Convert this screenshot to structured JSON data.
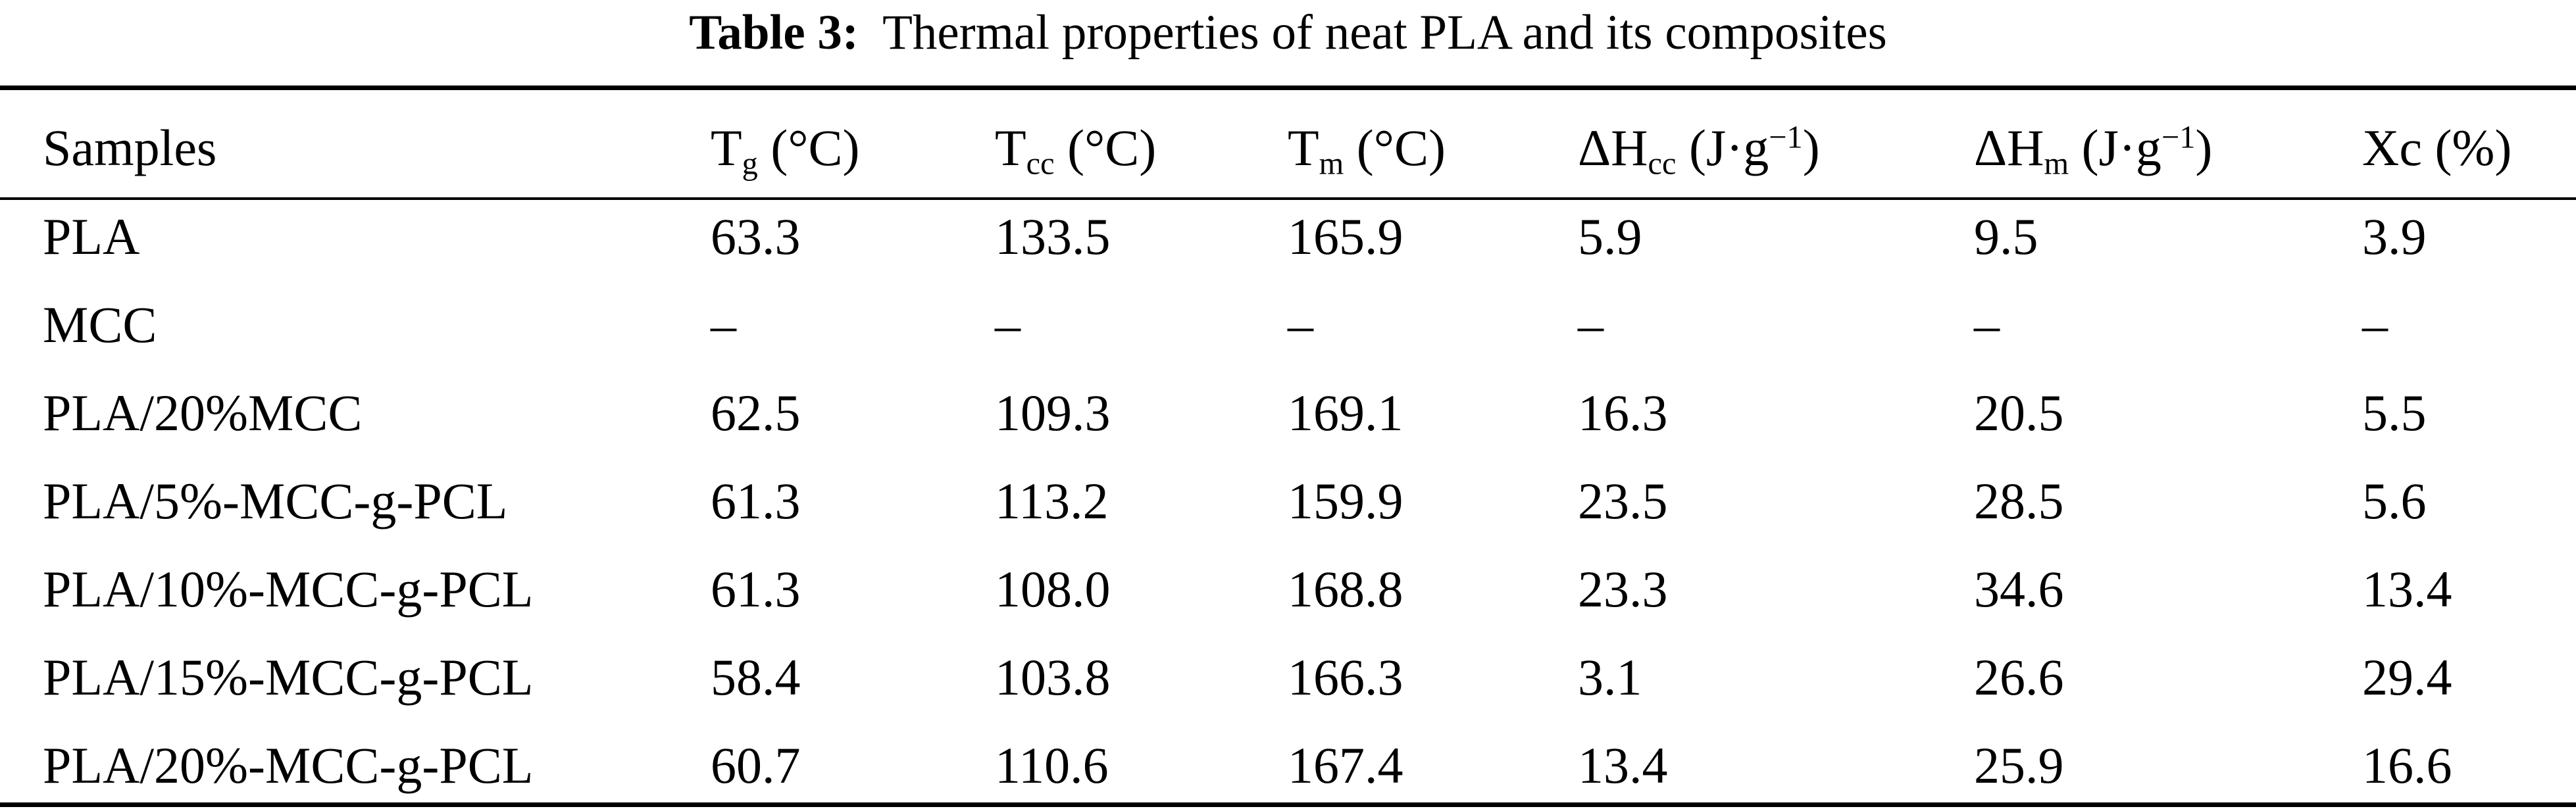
{
  "caption": {
    "label": "Table 3:",
    "title": "Thermal properties of neat PLA and its composites"
  },
  "table": {
    "header": {
      "samples": "Samples",
      "tg": {
        "main": "T",
        "sub": "g",
        "unit": " (°C)"
      },
      "tcc": {
        "main": "T",
        "sub": "cc",
        "unit": " (°C)"
      },
      "tm": {
        "main": "T",
        "sub": "m",
        "unit": " (°C)"
      },
      "dhcc": {
        "main": "ΔH",
        "sub": "cc",
        "unit_pre": " (J·g",
        "sup": "−1",
        "unit_post": ")"
      },
      "dhm": {
        "main": "ΔH",
        "sub": "m",
        "unit_pre": " (J·g",
        "sup": "−1",
        "unit_post": ")"
      },
      "xc": "Xc (%)"
    },
    "rows": [
      {
        "sample": "PLA",
        "tg": "63.3",
        "tcc": "133.5",
        "tm": "165.9",
        "dhcc": "5.9",
        "dhm": "9.5",
        "xc": "3.9"
      },
      {
        "sample": "MCC",
        "tg": "–",
        "tcc": "–",
        "tm": "–",
        "dhcc": "–",
        "dhm": "–",
        "xc": "–"
      },
      {
        "sample": "PLA/20%MCC",
        "tg": "62.5",
        "tcc": "109.3",
        "tm": "169.1",
        "dhcc": "16.3",
        "dhm": "20.5",
        "xc": "5.5"
      },
      {
        "sample": "PLA/5%-MCC-g-PCL",
        "tg": "61.3",
        "tcc": "113.2",
        "tm": "159.9",
        "dhcc": "23.5",
        "dhm": "28.5",
        "xc": "5.6"
      },
      {
        "sample": "PLA/10%-MCC-g-PCL",
        "tg": "61.3",
        "tcc": "108.0",
        "tm": "168.8",
        "dhcc": "23.3",
        "dhm": "34.6",
        "xc": "13.4"
      },
      {
        "sample": "PLA/15%-MCC-g-PCL",
        "tg": "58.4",
        "tcc": "103.8",
        "tm": "166.3",
        "dhcc": "3.1",
        "dhm": "26.6",
        "xc": "29.4"
      },
      {
        "sample": "PLA/20%-MCC-g-PCL",
        "tg": "60.7",
        "tcc": "110.6",
        "tm": "167.4",
        "dhcc": "13.4",
        "dhm": "25.9",
        "xc": "16.6"
      }
    ]
  }
}
